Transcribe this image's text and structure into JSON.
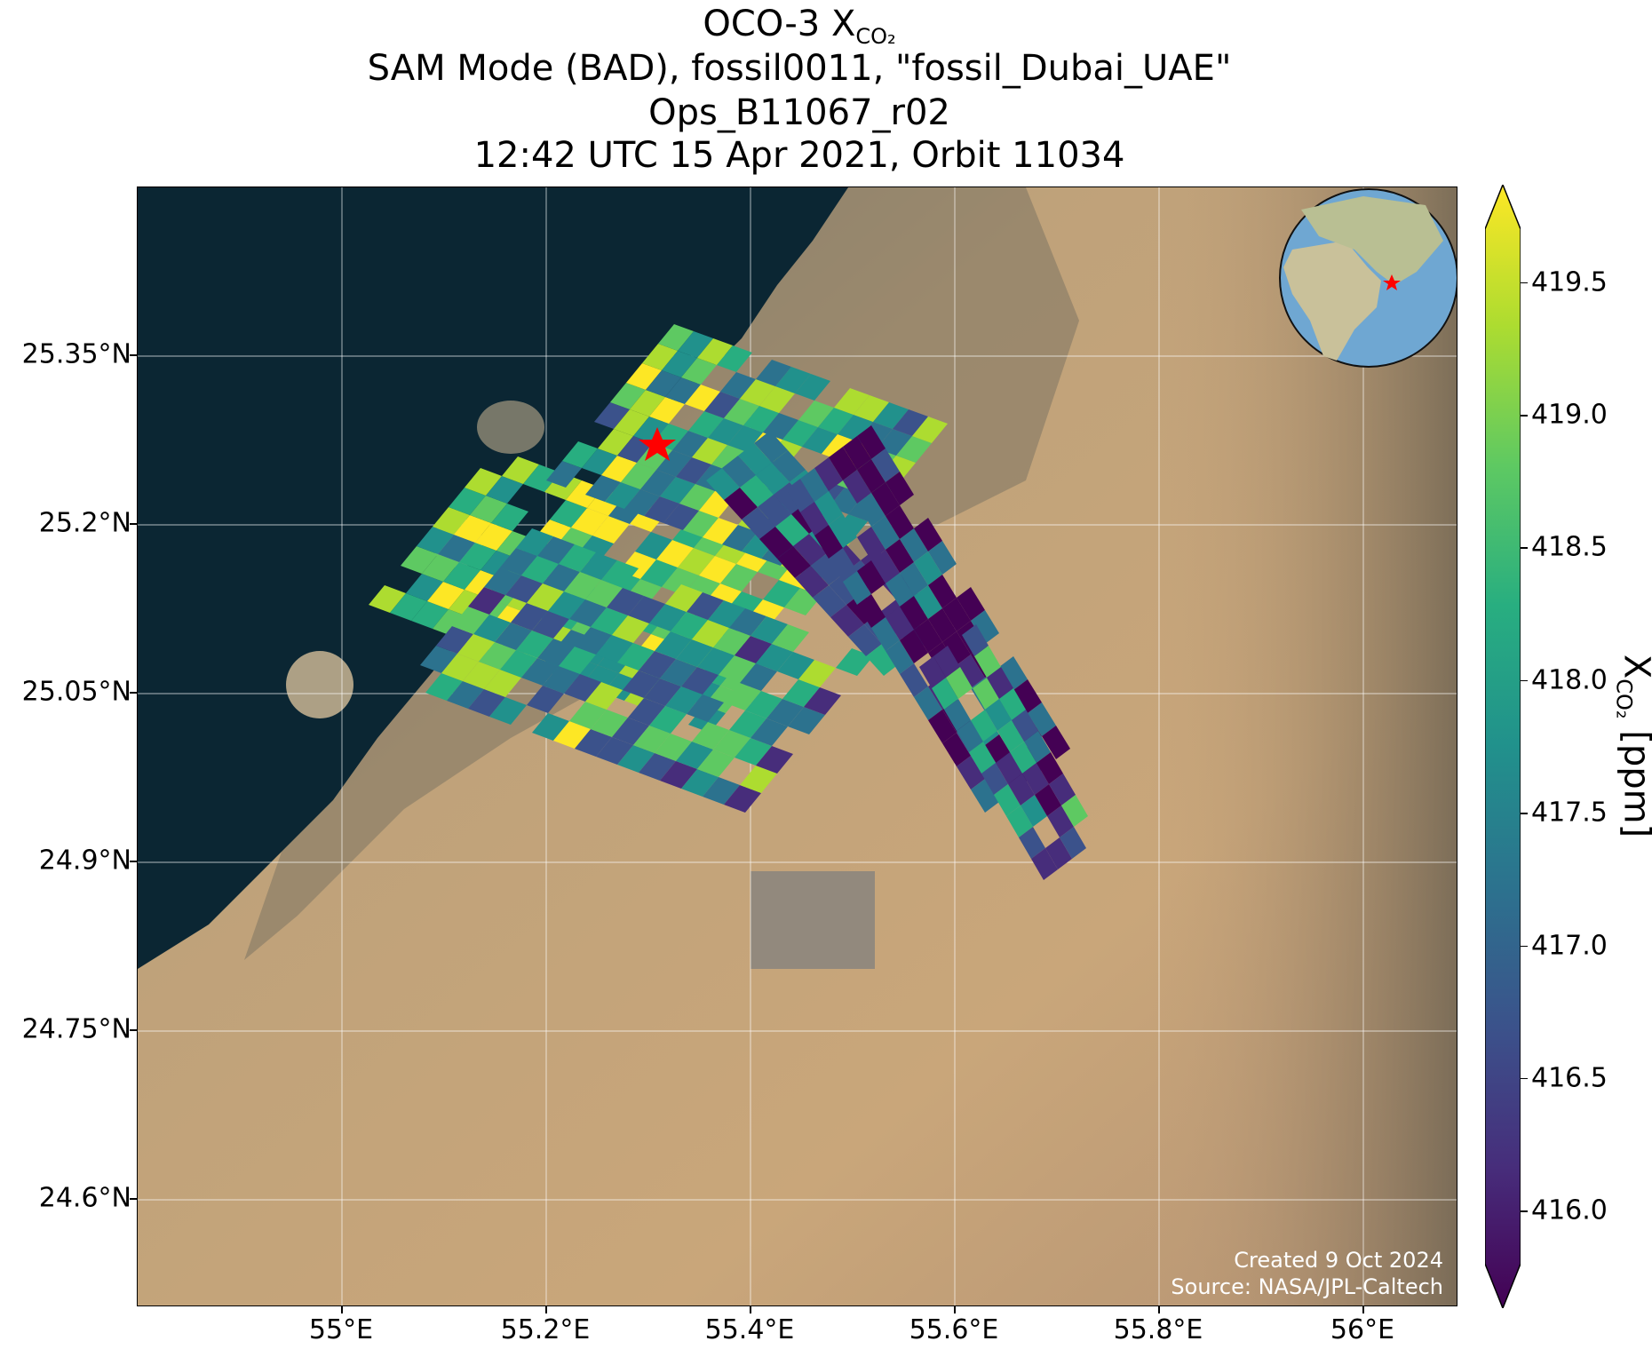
{
  "title": {
    "line1_main": "OCO-3 X",
    "line1_sub": "CO₂",
    "line2": "SAM Mode (BAD), fossil0011, \"fossil_Dubai_UAE\"",
    "line3": "Ops_B11067_r02",
    "line4": "12:42 UTC 15 Apr 2021, Orbit 11034"
  },
  "axes": {
    "lat_ticks": [
      "25.35°N",
      "25.2°N",
      "25.05°N",
      "24.9°N",
      "24.75°N",
      "24.6°N"
    ],
    "lon_ticks": [
      "55°E",
      "55.2°E",
      "55.4°E",
      "55.6°E",
      "55.8°E",
      "56°E"
    ]
  },
  "colorbar": {
    "label_main": "X",
    "label_sub": "CO₂",
    "label_unit": " [ppm]",
    "ticks": [
      "419.5",
      "419.0",
      "418.5",
      "418.0",
      "417.5",
      "417.0",
      "416.5",
      "416.0"
    ],
    "colormap": "viridis",
    "range": [
      415.8,
      419.7
    ],
    "extend": "both"
  },
  "credits": {
    "created": "Created 9 Oct 2024",
    "source": "Source: NASA/JPL-Caltech"
  },
  "map": {
    "extent_lon": [
      54.79,
      56.08
    ],
    "extent_lat": [
      24.5,
      25.5
    ],
    "target": {
      "name": "fossil_Dubai_UAE",
      "lon": 55.31,
      "lat": 25.27,
      "marker": "red-star"
    },
    "globe_inset": {
      "center_region": "Middle East",
      "marker": "red-star"
    },
    "gridlines": true,
    "colors": {
      "sea": "#0b2633",
      "desert": "#c4a57a",
      "marker": "#ff0000"
    }
  }
}
